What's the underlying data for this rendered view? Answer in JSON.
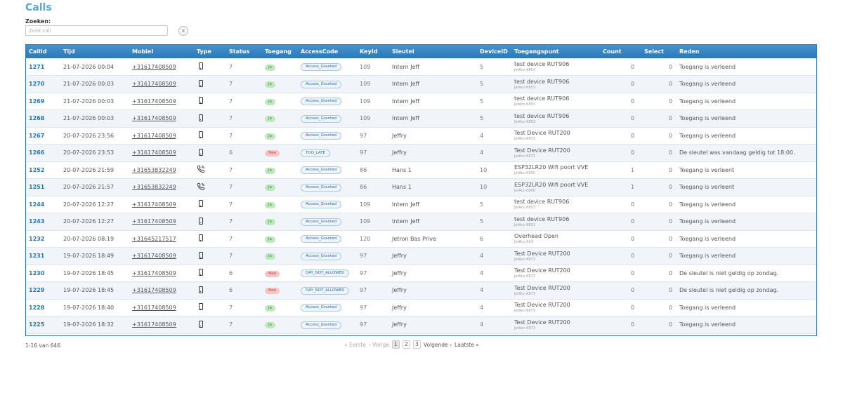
{
  "page": {
    "title": "Calls"
  },
  "search": {
    "label": "Zoeken:",
    "placeholder": "Zoek call",
    "clear_label": "×"
  },
  "table": {
    "headers": [
      "CallId",
      "Tijd",
      "Mobiel",
      "Type",
      "Status",
      "Toegang",
      "AccessCode",
      "KeyId",
      "Sleutel",
      "DeviceID",
      "Toegangspunt",
      "Count",
      "Select",
      "Reden"
    ],
    "rows": [
      {
        "callid": "1271",
        "tijd": "21-07-2026 00:04",
        "mobiel": "+31617408509",
        "type": "mobile-phone-icon",
        "status": "7",
        "toegang": "Ja",
        "toegang_ok": true,
        "accesscode": "Access_Granted",
        "keyid": "109",
        "sleutel": "Intern Jeff",
        "deviceid": "5",
        "tp_name": "test device RUT906",
        "tp_sub": "JetAcc-6853",
        "count": "0",
        "select": "0",
        "reden": "Toegang is verleend"
      },
      {
        "callid": "1270",
        "tijd": "21-07-2026 00:03",
        "mobiel": "+31617408509",
        "type": "mobile-phone-icon",
        "status": "7",
        "toegang": "Ja",
        "toegang_ok": true,
        "accesscode": "Access_Granted",
        "keyid": "109",
        "sleutel": "Intern Jeff",
        "deviceid": "5",
        "tp_name": "test device RUT906",
        "tp_sub": "JetAcc-6853",
        "count": "0",
        "select": "0",
        "reden": "Toegang is verleend"
      },
      {
        "callid": "1269",
        "tijd": "21-07-2026 00:03",
        "mobiel": "+31617408509",
        "type": "mobile-phone-icon",
        "status": "7",
        "toegang": "Ja",
        "toegang_ok": true,
        "accesscode": "Access_Granted",
        "keyid": "109",
        "sleutel": "Intern Jeff",
        "deviceid": "5",
        "tp_name": "test device RUT906",
        "tp_sub": "JetAcc-6853",
        "count": "0",
        "select": "0",
        "reden": "Toegang is verleend"
      },
      {
        "callid": "1268",
        "tijd": "21-07-2026 00:03",
        "mobiel": "+31617408509",
        "type": "mobile-phone-icon",
        "status": "7",
        "toegang": "Ja",
        "toegang_ok": true,
        "accesscode": "Access_Granted",
        "keyid": "109",
        "sleutel": "Intern Jeff",
        "deviceid": "5",
        "tp_name": "test device RUT906",
        "tp_sub": "JetAcc-6853",
        "count": "0",
        "select": "0",
        "reden": "Toegang is verleend"
      },
      {
        "callid": "1267",
        "tijd": "20-07-2026 23:56",
        "mobiel": "+31617408509",
        "type": "mobile-phone-icon",
        "status": "7",
        "toegang": "Ja",
        "toegang_ok": true,
        "accesscode": "Access_Granted",
        "keyid": "97",
        "sleutel": "Jeffry",
        "deviceid": "4",
        "tp_name": "Test Device RUT200",
        "tp_sub": "JetAcc-6873",
        "count": "0",
        "select": "0",
        "reden": "Toegang is verleend"
      },
      {
        "callid": "1266",
        "tijd": "20-07-2026 23:53",
        "mobiel": "+31617408509",
        "type": "mobile-phone-icon",
        "status": "6",
        "toegang": "Nee",
        "toegang_ok": false,
        "accesscode": "TOO_LATE",
        "keyid": "97",
        "sleutel": "Jeffry",
        "deviceid": "4",
        "tp_name": "Test Device RUT200",
        "tp_sub": "JetAcc-6873",
        "count": "0",
        "select": "0",
        "reden": "De sleutel was vandaag geldig tot 18:00."
      },
      {
        "callid": "1252",
        "tijd": "20-07-2026 21:59",
        "mobiel": "+31653832249",
        "type": "call-phone-icon",
        "status": "7",
        "toegang": "Ja",
        "toegang_ok": true,
        "accesscode": "Access_Granted",
        "keyid": "86",
        "sleutel": "Hans 1",
        "deviceid": "10",
        "tp_name": "ESP32LR20 Wifi poort VVE",
        "tp_sub": "JetAcc-0000",
        "count": "1",
        "select": "0",
        "reden": "Toegang is verleent"
      },
      {
        "callid": "1251",
        "tijd": "20-07-2026 21:57",
        "mobiel": "+31653832249",
        "type": "call-phone-icon",
        "status": "7",
        "toegang": "Ja",
        "toegang_ok": true,
        "accesscode": "Access_Granted",
        "keyid": "86",
        "sleutel": "Hans 1",
        "deviceid": "10",
        "tp_name": "ESP32LR20 Wifi poort VVE",
        "tp_sub": "JetAcc-0000",
        "count": "1",
        "select": "0",
        "reden": "Toegang is verleent"
      },
      {
        "callid": "1244",
        "tijd": "20-07-2026 12:27",
        "mobiel": "+31617408509",
        "type": "mobile-phone-icon",
        "status": "7",
        "toegang": "Ja",
        "toegang_ok": true,
        "accesscode": "Access_Granted",
        "keyid": "109",
        "sleutel": "Intern Jeff",
        "deviceid": "5",
        "tp_name": "test device RUT906",
        "tp_sub": "JetAcc-6853",
        "count": "0",
        "select": "0",
        "reden": "Toegang is verleend"
      },
      {
        "callid": "1243",
        "tijd": "20-07-2026 12:27",
        "mobiel": "+31617408509",
        "type": "mobile-phone-icon",
        "status": "7",
        "toegang": "Ja",
        "toegang_ok": true,
        "accesscode": "Access_Granted",
        "keyid": "109",
        "sleutel": "Intern Jeff",
        "deviceid": "5",
        "tp_name": "test device RUT906",
        "tp_sub": "JetAcc-6853",
        "count": "0",
        "select": "0",
        "reden": "Toegang is verleend"
      },
      {
        "callid": "1232",
        "tijd": "20-07-2026 08:19",
        "mobiel": "+31645217517",
        "type": "mobile-phone-icon",
        "status": "7",
        "toegang": "Ja",
        "toegang_ok": true,
        "accesscode": "Access_Granted",
        "keyid": "120",
        "sleutel": "Jetron Bas Prive",
        "deviceid": "6",
        "tp_name": "Overhead Open",
        "tp_sub": "JetAcc-XXX",
        "count": "0",
        "select": "0",
        "reden": "Toegang is verleend"
      },
      {
        "callid": "1231",
        "tijd": "19-07-2026 18:49",
        "mobiel": "+31617408509",
        "type": "mobile-phone-icon",
        "status": "7",
        "toegang": "Ja",
        "toegang_ok": true,
        "accesscode": "Access_Granted",
        "keyid": "97",
        "sleutel": "Jeffry",
        "deviceid": "4",
        "tp_name": "Test Device RUT200",
        "tp_sub": "JetAcc-6873",
        "count": "0",
        "select": "0",
        "reden": "Toegang is verleend"
      },
      {
        "callid": "1230",
        "tijd": "19-07-2026 18:45",
        "mobiel": "+31617408509",
        "type": "mobile-phone-icon",
        "status": "6",
        "toegang": "Nee",
        "toegang_ok": false,
        "accesscode": "DAY_NOT_ALLOWED",
        "keyid": "97",
        "sleutel": "Jeffry",
        "deviceid": "4",
        "tp_name": "Test Device RUT200",
        "tp_sub": "JetAcc-6873",
        "count": "0",
        "select": "0",
        "reden": "De sleutel is niet geldig op zondag."
      },
      {
        "callid": "1229",
        "tijd": "19-07-2026 18:45",
        "mobiel": "+31617408509",
        "type": "mobile-phone-icon",
        "status": "6",
        "toegang": "Nee",
        "toegang_ok": false,
        "accesscode": "DAY_NOT_ALLOWED",
        "keyid": "97",
        "sleutel": "Jeffry",
        "deviceid": "4",
        "tp_name": "Test Device RUT200",
        "tp_sub": "JetAcc-6873",
        "count": "0",
        "select": "0",
        "reden": "De sleutel is niet geldig op zondag."
      },
      {
        "callid": "1228",
        "tijd": "19-07-2026 18:40",
        "mobiel": "+31617408509",
        "type": "mobile-phone-icon",
        "status": "7",
        "toegang": "Ja",
        "toegang_ok": true,
        "accesscode": "Access_Granted",
        "keyid": "97",
        "sleutel": "Jeffry",
        "deviceid": "4",
        "tp_name": "Test Device RUT200",
        "tp_sub": "JetAcc-6873",
        "count": "0",
        "select": "0",
        "reden": "Toegang is verleend"
      },
      {
        "callid": "1225",
        "tijd": "19-07-2026 18:32",
        "mobiel": "+31617408509",
        "type": "mobile-phone-icon",
        "status": "7",
        "toegang": "Ja",
        "toegang_ok": true,
        "accesscode": "Access_Granted",
        "keyid": "97",
        "sleutel": "Jeffry",
        "deviceid": "4",
        "tp_name": "Test Device RUT200",
        "tp_sub": "JetAcc-6873",
        "count": "0",
        "select": "0",
        "reden": "Toegang is verleend"
      }
    ]
  },
  "footer": {
    "count_text": "1-16 van 646",
    "first": "« Eerste",
    "prev": "‹ Vorige",
    "pages": [
      "1",
      "2",
      "3"
    ],
    "active_page": "1",
    "next": "Volgende ›",
    "last": "Laatste »"
  },
  "colors": {
    "accent": "#5aa7dc",
    "header_bg": "#2c78b8",
    "ja_bg": "#bfe8bf",
    "nee_bg": "#f6c4c4"
  }
}
